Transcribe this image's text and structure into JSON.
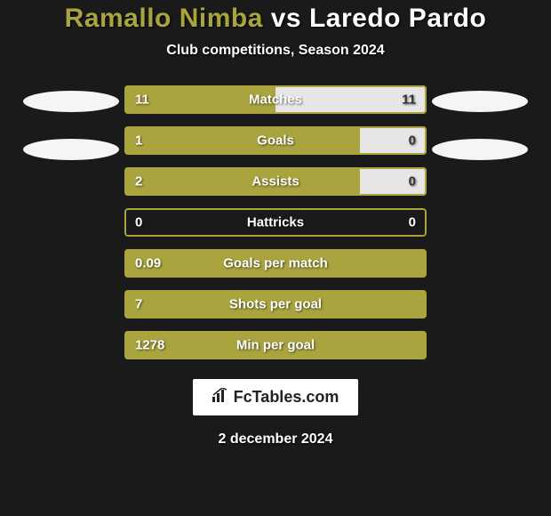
{
  "title": {
    "player1": "Ramallo Nimba",
    "vs": "vs",
    "player2": "Laredo Pardo"
  },
  "subtitle": "Club competitions, Season 2024",
  "colors": {
    "player1": "#a9a43e",
    "player2": "#e6e6e6",
    "border": "#a9a43e",
    "title_p1": "#a9a43e",
    "title_p2": "#ffffff",
    "bg": "#1a1a1a"
  },
  "stats": [
    {
      "label": "Matches",
      "left_val": "11",
      "right_val": "11",
      "left_pct": 50,
      "right_pct": 50
    },
    {
      "label": "Goals",
      "left_val": "1",
      "right_val": "0",
      "left_pct": 78,
      "right_pct": 22
    },
    {
      "label": "Assists",
      "left_val": "2",
      "right_val": "0",
      "left_pct": 78,
      "right_pct": 22
    },
    {
      "label": "Hattricks",
      "left_val": "0",
      "right_val": "0",
      "left_pct": 0,
      "right_pct": 0
    },
    {
      "label": "Goals per match",
      "left_val": "0.09",
      "right_val": "",
      "left_pct": 100,
      "right_pct": 0
    },
    {
      "label": "Shots per goal",
      "left_val": "7",
      "right_val": "",
      "left_pct": 100,
      "right_pct": 0
    },
    {
      "label": "Min per goal",
      "left_val": "1278",
      "right_val": "",
      "left_pct": 100,
      "right_pct": 0
    }
  ],
  "logo": {
    "icon": "📊",
    "text": "FcTables.com"
  },
  "date": "2 december 2024"
}
